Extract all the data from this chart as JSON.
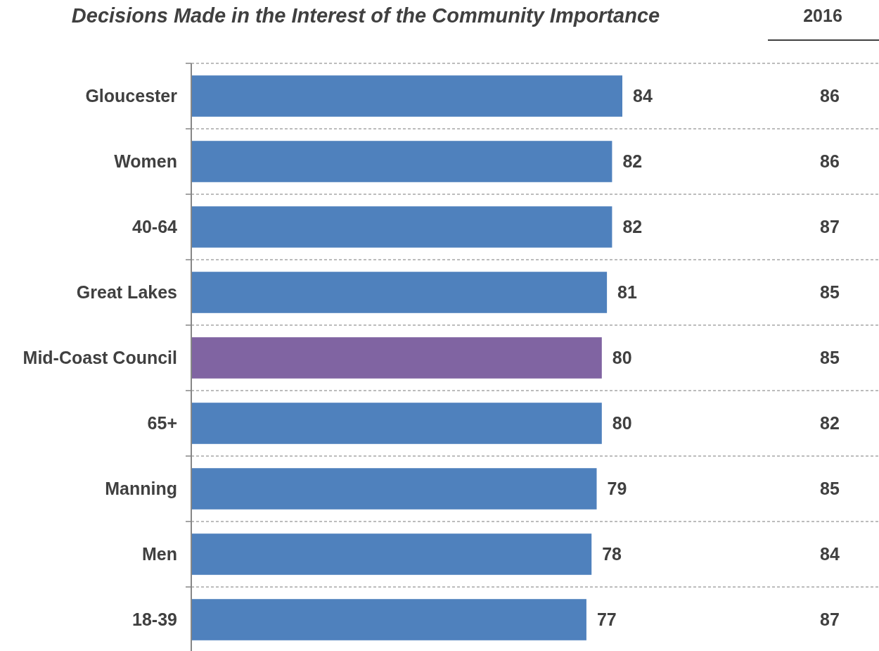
{
  "chart_data": {
    "type": "bar",
    "orientation": "horizontal",
    "title": "Decisions Made in the Interest of the Community Importance",
    "categories": [
      "Gloucester",
      "Women",
      "40-64",
      "Great Lakes",
      "Mid-Coast Council",
      "65+",
      "Manning",
      "Men",
      "18-39"
    ],
    "values": [
      84,
      82,
      82,
      81,
      80,
      80,
      79,
      78,
      77
    ],
    "colors": [
      "#4f81bd",
      "#4f81bd",
      "#4f81bd",
      "#4f81bd",
      "#8064a2",
      "#4f81bd",
      "#4f81bd",
      "#4f81bd",
      "#4f81bd"
    ],
    "annotations": [
      "2016",
      "86",
      "86",
      "87",
      "85",
      "85",
      "82",
      "85",
      "84",
      "87"
    ],
    "data_labels": true,
    "grid": "y"
  }
}
